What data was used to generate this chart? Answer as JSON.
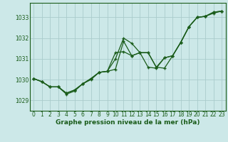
{
  "background_color": "#cce8e8",
  "grid_color": "#aacccc",
  "line_color": "#1a5c1a",
  "xlabel": "Graphe pression niveau de la mer (hPa)",
  "ylim": [
    1028.5,
    1033.7
  ],
  "xlim": [
    -0.5,
    23.5
  ],
  "yticks": [
    1029,
    1030,
    1031,
    1032,
    1033
  ],
  "xticks": [
    0,
    1,
    2,
    3,
    4,
    5,
    6,
    7,
    8,
    9,
    10,
    11,
    12,
    13,
    14,
    15,
    16,
    17,
    18,
    19,
    20,
    21,
    22,
    23
  ],
  "series1": [
    1030.05,
    1029.9,
    1029.65,
    1029.65,
    1029.3,
    1029.45,
    1029.8,
    1030.0,
    1030.35,
    1030.4,
    1031.0,
    1032.0,
    1031.75,
    1031.3,
    1030.6,
    1030.55,
    1031.05,
    1031.15,
    1031.8,
    1032.55,
    1033.0,
    1033.05,
    1033.2,
    1033.3
  ],
  "series2": [
    1030.05,
    1029.9,
    1029.65,
    1029.65,
    1029.35,
    1029.5,
    1029.8,
    1030.05,
    1030.35,
    1030.4,
    1031.3,
    1031.35,
    1031.15,
    1031.3,
    1031.3,
    1030.6,
    1030.55,
    1031.15,
    1031.8,
    1032.55,
    1033.0,
    1033.05,
    1033.25,
    1033.3
  ],
  "series3": [
    1030.05,
    1029.9,
    1029.65,
    1029.65,
    1029.35,
    1029.5,
    1029.8,
    1030.05,
    1030.35,
    1030.4,
    1030.5,
    1031.85,
    1031.15,
    1031.3,
    1031.3,
    1030.6,
    1031.05,
    1031.15,
    1031.8,
    1032.55,
    1033.0,
    1033.05,
    1033.25,
    1033.3
  ]
}
